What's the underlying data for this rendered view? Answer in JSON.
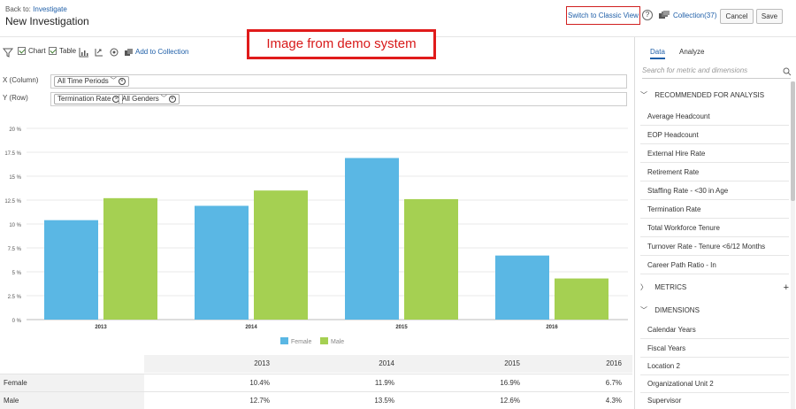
{
  "header": {
    "back_prefix": "Back to:",
    "back_link": "Investigate",
    "title": "New Investigation",
    "classic_view": "Switch to Classic View",
    "help": "?",
    "collection": "Collection(37)",
    "cancel": "Cancel",
    "save": "Save"
  },
  "toolbar": {
    "chart": "Chart",
    "table": "Table",
    "add_to_collection": "Add to Collection"
  },
  "banner": "Image from demo system",
  "dimensions": {
    "x_label": "X (Column)",
    "y_label": "Y (Row)",
    "x_tokens": [
      "All Time Periods"
    ],
    "y_tokens": [
      "Termination Rate",
      "All Genders"
    ]
  },
  "chart_data": {
    "type": "bar",
    "categories": [
      "2013",
      "2014",
      "2015",
      "2016"
    ],
    "series": [
      {
        "name": "Female",
        "values": [
          10.4,
          11.9,
          16.9,
          6.7
        ],
        "color": "#5ab7e4"
      },
      {
        "name": "Male",
        "values": [
          12.7,
          13.5,
          12.6,
          4.3
        ],
        "color": "#a5d052"
      }
    ],
    "ylim": [
      0,
      20
    ],
    "yticks": [
      "0 %",
      "2.5 %",
      "5 %",
      "7.5 %",
      "10 %",
      "12.5 %",
      "15 %",
      "17.5 %",
      "20 %"
    ],
    "grid": true,
    "legend_position": "bottom"
  },
  "table": {
    "columns": [
      "2013",
      "2014",
      "2015",
      "2016"
    ],
    "rows": [
      {
        "label": "Female",
        "values": [
          "10.4%",
          "11.9%",
          "16.9%",
          "6.7%"
        ]
      },
      {
        "label": "Male",
        "values": [
          "12.7%",
          "13.5%",
          "12.6%",
          "4.3%"
        ]
      }
    ]
  },
  "panel": {
    "tab_data": "Data",
    "tab_analyze": "Analyze",
    "search_placeholder": "Search for metric and dimensions",
    "recommended_title": "RECOMMENDED FOR ANALYSIS",
    "recommended": [
      "Average Headcount",
      "EOP Headcount",
      "External Hire Rate",
      "Retirement Rate",
      "Staffing Rate - <30 in Age",
      "Termination Rate",
      "Total Workforce Tenure",
      "Turnover Rate - Tenure <6/12 Months",
      "Career Path Ratio - In"
    ],
    "metrics_title": "METRICS",
    "dimensions_title": "DIMENSIONS",
    "dimensions": [
      "Calendar Years",
      "Fiscal Years",
      "Location 2",
      "Organizational Unit 2",
      "Supervisor"
    ]
  }
}
